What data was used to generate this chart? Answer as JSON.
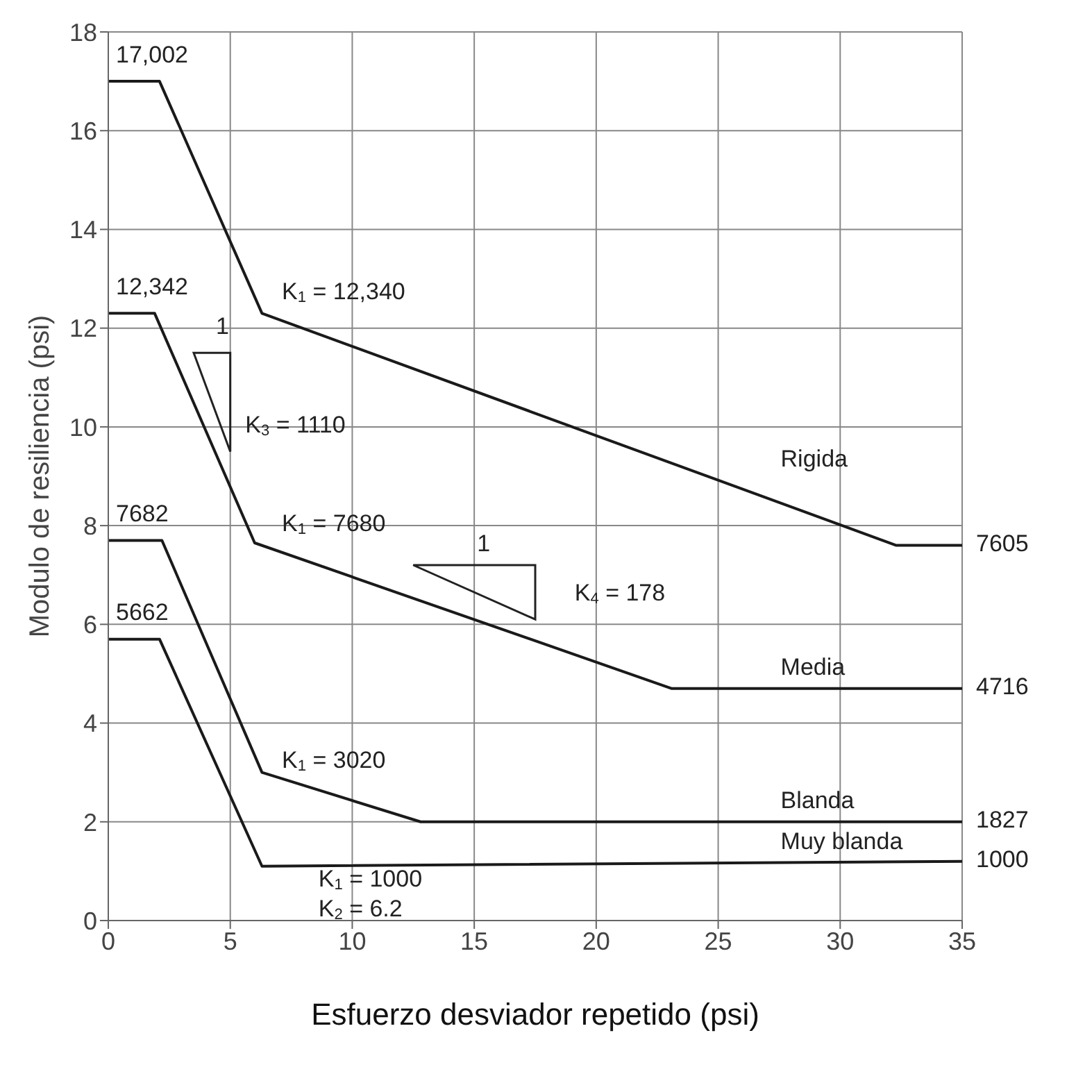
{
  "chart_data": {
    "type": "line",
    "xlabel": "Esfuerzo desviador repetido (psi)",
    "ylabel": "Modulo de resiliencia (psi)",
    "xlim": [
      0,
      35
    ],
    "xticks": [
      0,
      5,
      10,
      15,
      20,
      25,
      30,
      35
    ],
    "ylim": [
      0,
      18
    ],
    "yticks": [
      0,
      2,
      4,
      6,
      8,
      10,
      12,
      14,
      16,
      18
    ],
    "grid": true,
    "legend": false,
    "marker": "none",
    "line_style": "solid",
    "series": [
      {
        "name": "Rigida",
        "color": "#1a1a1a",
        "x": [
          0,
          2.1,
          6.3,
          32.3,
          35
        ],
        "values": [
          17.0,
          17.0,
          12.3,
          7.6,
          7.6
        ]
      },
      {
        "name": "Media",
        "color": "#1a1a1a",
        "x": [
          0,
          1.9,
          6.0,
          23.1,
          35
        ],
        "values": [
          12.3,
          12.3,
          7.65,
          4.7,
          4.7
        ]
      },
      {
        "name": "Blanda",
        "color": "#1a1a1a",
        "x": [
          0,
          2.2,
          6.3,
          12.8,
          35
        ],
        "values": [
          7.7,
          7.7,
          3.0,
          2.0,
          2.0
        ]
      },
      {
        "name": "Muy blanda",
        "color": "#1a1a1a",
        "x": [
          0,
          2.1,
          6.3,
          35
        ],
        "values": [
          5.7,
          5.7,
          1.1,
          1.2
        ]
      }
    ],
    "annotations": [
      "17,002",
      "K$_{1}$ = 12,340",
      "12,342",
      "1",
      "K$_{3}$ = 1110",
      "K$_{1}$ = 7680",
      "7682",
      "1",
      "K$_{4}$ = 178",
      "5662",
      "K$_{1}$ = 3020",
      "K$_{1}$ = 1000",
      "K$_{2}$ = 6.2",
      "7605",
      "4716",
      "1827",
      "1000"
    ]
  }
}
